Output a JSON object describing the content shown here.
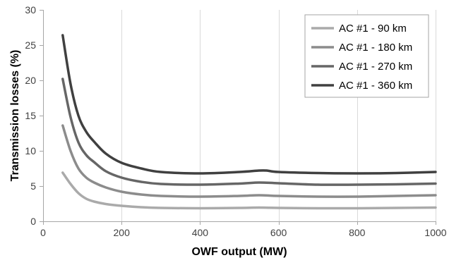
{
  "chart_data": {
    "type": "line",
    "title": "",
    "xlabel": "OWF output  (MW)",
    "ylabel": "Transmission losses  (%)",
    "xlim": [
      0,
      1000
    ],
    "ylim": [
      0,
      30
    ],
    "x_ticks": [
      "0",
      "200",
      "400",
      "600",
      "800",
      "1000"
    ],
    "y_ticks": [
      "0",
      "5",
      "10",
      "15",
      "20",
      "25",
      "30"
    ],
    "grid": "vertical",
    "legend_position": "top-right",
    "series": [
      {
        "name": "AC #1 - 90 km",
        "color": "#aaaaaa",
        "x": [
          50,
          70,
          90,
          110,
          130,
          160,
          200,
          250,
          300,
          400,
          500,
          550,
          600,
          700,
          800,
          900,
          1000
        ],
        "y": [
          6.9,
          5.3,
          4.0,
          3.2,
          2.8,
          2.45,
          2.2,
          2.0,
          1.9,
          1.85,
          1.9,
          1.95,
          1.9,
          1.85,
          1.85,
          1.9,
          1.95
        ]
      },
      {
        "name": "AC #1 - 180 km",
        "color": "#8c8c8c",
        "x": [
          50,
          70,
          90,
          110,
          130,
          160,
          200,
          250,
          300,
          400,
          500,
          550,
          600,
          700,
          800,
          900,
          1000
        ],
        "y": [
          13.6,
          10.0,
          7.5,
          6.2,
          5.5,
          4.8,
          4.2,
          3.8,
          3.6,
          3.5,
          3.6,
          3.7,
          3.6,
          3.5,
          3.5,
          3.6,
          3.7
        ]
      },
      {
        "name": "AC #1 - 270 km",
        "color": "#666666",
        "x": [
          50,
          70,
          90,
          110,
          130,
          160,
          200,
          250,
          300,
          400,
          500,
          550,
          600,
          700,
          800,
          900,
          1000
        ],
        "y": [
          20.2,
          14.8,
          11.2,
          9.4,
          8.4,
          7.1,
          6.2,
          5.6,
          5.3,
          5.2,
          5.35,
          5.5,
          5.4,
          5.2,
          5.2,
          5.25,
          5.35
        ]
      },
      {
        "name": "AC #1 - 360 km",
        "color": "#404040",
        "x": [
          50,
          70,
          90,
          110,
          130,
          160,
          200,
          250,
          300,
          400,
          500,
          550,
          570,
          600,
          700,
          800,
          900,
          1000
        ],
        "y": [
          26.4,
          19.5,
          15.0,
          12.7,
          11.3,
          9.6,
          8.3,
          7.5,
          7.0,
          6.8,
          7.0,
          7.2,
          7.2,
          7.0,
          6.85,
          6.8,
          6.85,
          7.0
        ]
      }
    ]
  }
}
